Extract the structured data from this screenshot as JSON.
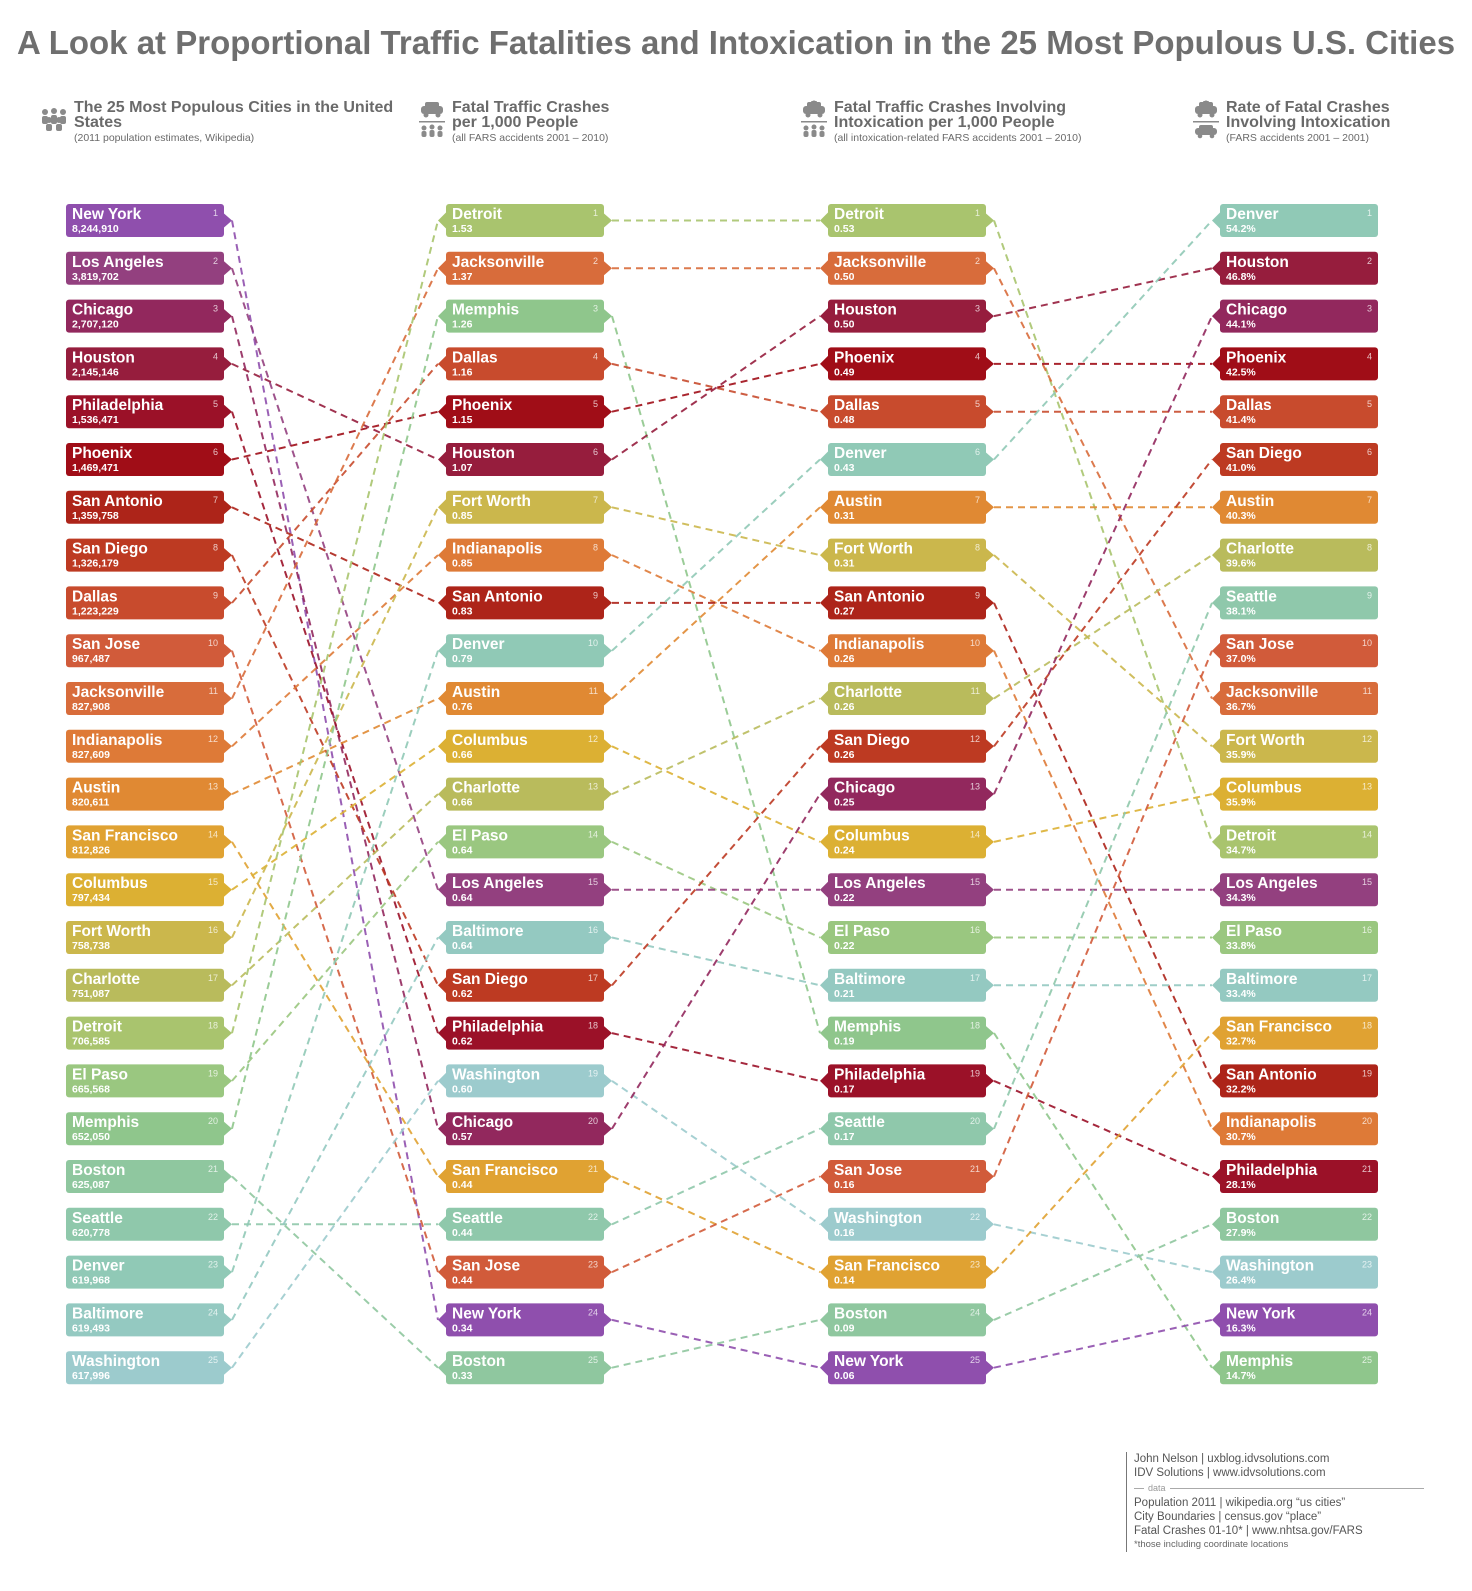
{
  "title": "A Look at Proportional Traffic Fatalities and Intoxication in the 25 Most Populous U.S. Cities",
  "columns": [
    {
      "title": "The 25 Most Populous Cities in the United States",
      "subtitle": "(2011 population estimates, Wikipedia)",
      "icon": "people-icon"
    },
    {
      "title": "Fatal Traffic Crashes per 1,000 People",
      "subtitle": "(all FARS accidents 2001 – 2010)",
      "icon": "car-over-people-icon"
    },
    {
      "title": "Fatal Traffic Crashes Involving Intoxication per 1,000 People",
      "subtitle": "(all intoxication-related FARS accidents 2001 – 2010)",
      "icon": "drinker-car-over-people-icon"
    },
    {
      "title": "Rate of Fatal Crashes Involving Intoxication",
      "subtitle": "(FARS accidents 2001 – 2001)",
      "icon": "drinker-over-car-icon"
    }
  ],
  "chart_data": {
    "type": "table",
    "title": "A Look at Proportional Traffic Fatalities and Intoxication in the 25 Most Populous U.S. Cities",
    "city_colors": {
      "New York": "#8f4fad",
      "Los Angeles": "#93407f",
      "Chicago": "#92285d",
      "Houston": "#961d3d",
      "Philadelphia": "#9b1128",
      "Phoenix": "#a00d17",
      "San Antonio": "#ad2419",
      "San Diego": "#bd3a22",
      "Dallas": "#c84b2d",
      "San Jose": "#d15b3a",
      "Jacksonville": "#d86c3b",
      "Indianapolis": "#de7a37",
      "Austin": "#e08933",
      "San Francisco": "#e0a232",
      "Columbus": "#dcb033",
      "Fort Worth": "#cbb74c",
      "Charlotte": "#b9bb5c",
      "Detroit": "#a9c46e",
      "El Paso": "#9ac780",
      "Memphis": "#8fc68c",
      "Boston": "#8fc79f",
      "Seattle": "#8fc8ab",
      "Denver": "#90c9b6",
      "Baltimore": "#94c9c1",
      "Washington": "#9ccbcd"
    },
    "rankings": [
      {
        "name": "population",
        "items": [
          {
            "city": "New York",
            "value": "8,244,910"
          },
          {
            "city": "Los Angeles",
            "value": "3,819,702"
          },
          {
            "city": "Chicago",
            "value": "2,707,120"
          },
          {
            "city": "Houston",
            "value": "2,145,146"
          },
          {
            "city": "Philadelphia",
            "value": "1,536,471"
          },
          {
            "city": "Phoenix",
            "value": "1,469,471"
          },
          {
            "city": "San Antonio",
            "value": "1,359,758"
          },
          {
            "city": "San Diego",
            "value": "1,326,179"
          },
          {
            "city": "Dallas",
            "value": "1,223,229"
          },
          {
            "city": "San Jose",
            "value": "967,487"
          },
          {
            "city": "Jacksonville",
            "value": "827,908"
          },
          {
            "city": "Indianapolis",
            "value": "827,609"
          },
          {
            "city": "Austin",
            "value": "820,611"
          },
          {
            "city": "San Francisco",
            "value": "812,826"
          },
          {
            "city": "Columbus",
            "value": "797,434"
          },
          {
            "city": "Fort Worth",
            "value": "758,738"
          },
          {
            "city": "Charlotte",
            "value": "751,087"
          },
          {
            "city": "Detroit",
            "value": "706,585"
          },
          {
            "city": "El Paso",
            "value": "665,568"
          },
          {
            "city": "Memphis",
            "value": "652,050"
          },
          {
            "city": "Boston",
            "value": "625,087"
          },
          {
            "city": "Seattle",
            "value": "620,778"
          },
          {
            "city": "Denver",
            "value": "619,968"
          },
          {
            "city": "Baltimore",
            "value": "619,493"
          },
          {
            "city": "Washington",
            "value": "617,996"
          }
        ]
      },
      {
        "name": "fatal_crashes_per_1000",
        "items": [
          {
            "city": "Detroit",
            "value": "1.53"
          },
          {
            "city": "Jacksonville",
            "value": "1.37"
          },
          {
            "city": "Memphis",
            "value": "1.26"
          },
          {
            "city": "Dallas",
            "value": "1.16"
          },
          {
            "city": "Phoenix",
            "value": "1.15"
          },
          {
            "city": "Houston",
            "value": "1.07"
          },
          {
            "city": "Fort Worth",
            "value": "0.85"
          },
          {
            "city": "Indianapolis",
            "value": "0.85"
          },
          {
            "city": "San Antonio",
            "value": "0.83"
          },
          {
            "city": "Denver",
            "value": "0.79"
          },
          {
            "city": "Austin",
            "value": "0.76"
          },
          {
            "city": "Columbus",
            "value": "0.66"
          },
          {
            "city": "Charlotte",
            "value": "0.66"
          },
          {
            "city": "El Paso",
            "value": "0.64"
          },
          {
            "city": "Los Angeles",
            "value": "0.64"
          },
          {
            "city": "Baltimore",
            "value": "0.64"
          },
          {
            "city": "San Diego",
            "value": "0.62"
          },
          {
            "city": "Philadelphia",
            "value": "0.62"
          },
          {
            "city": "Washington",
            "value": "0.60"
          },
          {
            "city": "Chicago",
            "value": "0.57"
          },
          {
            "city": "San Francisco",
            "value": "0.44"
          },
          {
            "city": "Seattle",
            "value": "0.44"
          },
          {
            "city": "San Jose",
            "value": "0.44"
          },
          {
            "city": "New York",
            "value": "0.34"
          },
          {
            "city": "Boston",
            "value": "0.33"
          }
        ]
      },
      {
        "name": "intox_crashes_per_1000",
        "items": [
          {
            "city": "Detroit",
            "value": "0.53"
          },
          {
            "city": "Jacksonville",
            "value": "0.50"
          },
          {
            "city": "Houston",
            "value": "0.50"
          },
          {
            "city": "Phoenix",
            "value": "0.49"
          },
          {
            "city": "Dallas",
            "value": "0.48"
          },
          {
            "city": "Denver",
            "value": "0.43"
          },
          {
            "city": "Austin",
            "value": "0.31"
          },
          {
            "city": "Fort Worth",
            "value": "0.31"
          },
          {
            "city": "San Antonio",
            "value": "0.27"
          },
          {
            "city": "Indianapolis",
            "value": "0.26"
          },
          {
            "city": "Charlotte",
            "value": "0.26"
          },
          {
            "city": "San Diego",
            "value": "0.26"
          },
          {
            "city": "Chicago",
            "value": "0.25"
          },
          {
            "city": "Columbus",
            "value": "0.24"
          },
          {
            "city": "Los Angeles",
            "value": "0.22"
          },
          {
            "city": "El Paso",
            "value": "0.22"
          },
          {
            "city": "Baltimore",
            "value": "0.21"
          },
          {
            "city": "Memphis",
            "value": "0.19"
          },
          {
            "city": "Philadelphia",
            "value": "0.17"
          },
          {
            "city": "Seattle",
            "value": "0.17"
          },
          {
            "city": "San Jose",
            "value": "0.16"
          },
          {
            "city": "Washington",
            "value": "0.16"
          },
          {
            "city": "San Francisco",
            "value": "0.14"
          },
          {
            "city": "Boston",
            "value": "0.09"
          },
          {
            "city": "New York",
            "value": "0.06"
          }
        ]
      },
      {
        "name": "intox_rate",
        "items": [
          {
            "city": "Denver",
            "value": "54.2%"
          },
          {
            "city": "Houston",
            "value": "46.8%"
          },
          {
            "city": "Chicago",
            "value": "44.1%"
          },
          {
            "city": "Phoenix",
            "value": "42.5%"
          },
          {
            "city": "Dallas",
            "value": "41.4%"
          },
          {
            "city": "San Diego",
            "value": "41.0%"
          },
          {
            "city": "Austin",
            "value": "40.3%"
          },
          {
            "city": "Charlotte",
            "value": "39.6%"
          },
          {
            "city": "Seattle",
            "value": "38.1%"
          },
          {
            "city": "San Jose",
            "value": "37.0%"
          },
          {
            "city": "Jacksonville",
            "value": "36.7%"
          },
          {
            "city": "Fort Worth",
            "value": "35.9%"
          },
          {
            "city": "Columbus",
            "value": "35.9%"
          },
          {
            "city": "Detroit",
            "value": "34.7%"
          },
          {
            "city": "Los Angeles",
            "value": "34.3%"
          },
          {
            "city": "El Paso",
            "value": "33.8%"
          },
          {
            "city": "Baltimore",
            "value": "33.4%"
          },
          {
            "city": "San Francisco",
            "value": "32.7%"
          },
          {
            "city": "San Antonio",
            "value": "32.2%"
          },
          {
            "city": "Indianapolis",
            "value": "30.7%"
          },
          {
            "city": "Philadelphia",
            "value": "28.1%"
          },
          {
            "city": "Boston",
            "value": "27.9%"
          },
          {
            "city": "Washington",
            "value": "26.4%"
          },
          {
            "city": "New York",
            "value": "16.3%"
          },
          {
            "city": "Memphis",
            "value": "14.7%"
          }
        ]
      }
    ]
  },
  "credits": {
    "author": "John Nelson  |  uxblog.idvsolutions.com",
    "org": "IDV Solutions  |  www.idvsolutions.com",
    "data_label": "data",
    "src1": "Population 2011  |  wikipedia.org  “us cities”",
    "src2": "City Boundaries  |  census.gov  “place”",
    "src3": "Fatal Crashes 01-10*  |  www.nhtsa.gov/FARS",
    "note": "*those including coordinate locations"
  }
}
